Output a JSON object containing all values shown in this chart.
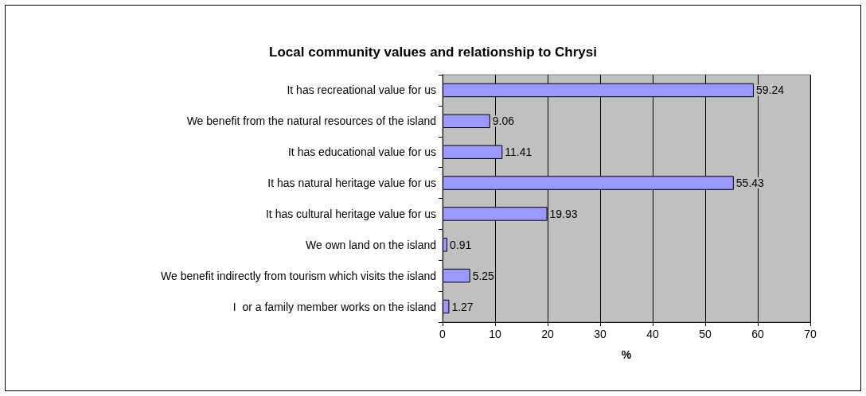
{
  "chart_data": {
    "type": "bar",
    "orientation": "horizontal",
    "title": "Local community values and relationship to Chrysi",
    "xlabel": "%",
    "categories": [
      "It has recreational value for us",
      "We benefit from the natural resources of the island",
      "It has educational value for us",
      "It has natural heritage value for us",
      "It has cultural heritage value for us",
      "We own land on the island",
      "We benefit indirectly from tourism which visits the island",
      "I  or a family member works on the island"
    ],
    "values": [
      59.24,
      9.06,
      11.41,
      55.43,
      19.93,
      0.91,
      5.25,
      1.27
    ],
    "color": "#9999ff",
    "data_labels": true,
    "xlim": [
      0,
      70
    ],
    "xticks": [
      0,
      10,
      20,
      30,
      40,
      50,
      60,
      70
    ],
    "grid": "x"
  }
}
